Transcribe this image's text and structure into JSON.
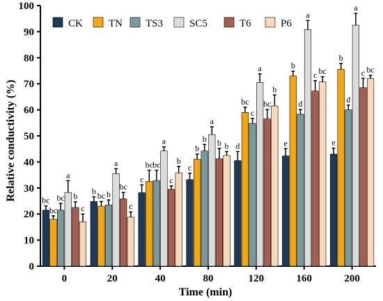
{
  "chart_data": {
    "type": "bar",
    "xlabel": "Time (min)",
    "ylabel": "Relative conductivity (%)",
    "ylim": [
      0,
      100
    ],
    "yticks": [
      0,
      10,
      20,
      30,
      40,
      50,
      60,
      70,
      80,
      90,
      100
    ],
    "categories": [
      "0",
      "20",
      "40",
      "80",
      "120",
      "160",
      "200"
    ],
    "legend_position": "top",
    "series": [
      {
        "name": "CK",
        "color": "#1f3a56",
        "values": [
          21.5,
          24.8,
          28.2,
          33.2,
          40.5,
          42.3,
          43.0
        ],
        "errors": [
          1.6,
          1.8,
          3.0,
          2.5,
          3.5,
          2.8,
          2.3
        ],
        "labels": [
          "bc",
          "b",
          "c",
          "c",
          "d",
          "e",
          "e"
        ]
      },
      {
        "name": "TN",
        "color": "#f5a70f",
        "values": [
          18.0,
          23.0,
          32.5,
          41.0,
          59.0,
          73.0,
          75.5
        ],
        "errors": [
          1.3,
          1.8,
          4.3,
          2.0,
          2.0,
          1.8,
          2.3
        ],
        "labels": [
          "bc",
          "bc",
          "bc",
          "b",
          "bc",
          "b",
          "b"
        ]
      },
      {
        "name": "TS3",
        "color": "#79999a",
        "values": [
          21.5,
          23.5,
          32.8,
          44.2,
          54.8,
          58.3,
          60.0
        ],
        "errors": [
          2.6,
          1.9,
          4.0,
          2.5,
          1.9,
          1.8,
          1.8
        ],
        "labels": [
          "bc",
          "b",
          "bc",
          "b",
          "c",
          "d",
          "d"
        ]
      },
      {
        "name": "SC5",
        "color": "#dcdcdc",
        "values": [
          28.3,
          35.5,
          44.2,
          50.5,
          70.5,
          90.8,
          92.5
        ],
        "errors": [
          4.5,
          1.9,
          1.6,
          3.0,
          3.3,
          3.5,
          4.5
        ],
        "labels": [
          "a",
          "a",
          "a",
          "a",
          "a",
          "a",
          "a"
        ]
      },
      {
        "name": "T6",
        "color": "#a65e50",
        "values": [
          22.5,
          25.8,
          29.5,
          41.2,
          56.5,
          67.2,
          68.5
        ],
        "errors": [
          2.2,
          2.5,
          1.3,
          4.0,
          3.6,
          4.0,
          3.6
        ],
        "labels": [
          "b",
          "bc",
          "c",
          "b",
          "bc",
          "c",
          "c"
        ]
      },
      {
        "name": "P6",
        "color": "#f6d9b6",
        "values": [
          17.0,
          18.8,
          35.8,
          42.5,
          61.5,
          70.7,
          72.0
        ],
        "errors": [
          3.0,
          2.0,
          2.5,
          1.5,
          4.2,
          2.0,
          1.2
        ],
        "labels": [
          "c",
          "c",
          "b",
          "b",
          "b",
          "bc",
          "bc"
        ]
      }
    ]
  }
}
